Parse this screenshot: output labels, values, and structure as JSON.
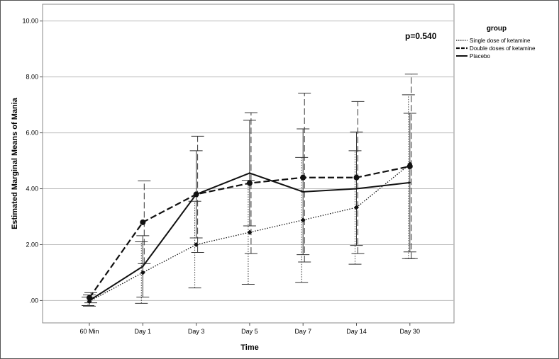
{
  "chart_data": {
    "type": "line",
    "xlabel": "Time",
    "ylabel": "Estimated Marginal Means of Mania",
    "categories": [
      "60 Min",
      "Day 1",
      "Day 3",
      "Day 5",
      "Day 7",
      "Day 14",
      "Day 30"
    ],
    "ylim": [
      -0.8,
      10.6
    ],
    "yticks": [
      0,
      2,
      4,
      6,
      8,
      10
    ],
    "ytick_labels": [
      ".00",
      "2.00",
      "4.00",
      "6.00",
      "8.00",
      "10.00"
    ],
    "grid": "horizontal",
    "annotation": "p=0.540",
    "legend": {
      "title": "group",
      "placement": "top-right"
    },
    "series": [
      {
        "name": "Single dose of ketamine",
        "style": "dotted",
        "marker": "diamond",
        "values": [
          -0.03,
          1.0,
          2.0,
          2.44,
          2.88,
          3.33,
          4.88
        ],
        "ci_low": [
          -0.18,
          -0.1,
          0.45,
          0.58,
          0.65,
          1.3,
          1.5
        ],
        "ci_high": [
          0.12,
          2.1,
          3.55,
          4.3,
          5.12,
          5.36,
          7.36
        ]
      },
      {
        "name": "Double doses of ketamine",
        "style": "dashed",
        "marker": "circle",
        "values": [
          0.1,
          2.8,
          3.8,
          4.2,
          4.4,
          4.4,
          4.8
        ],
        "ci_low": [
          -0.08,
          1.32,
          1.72,
          1.68,
          1.38,
          1.68,
          1.5
        ],
        "ci_high": [
          0.28,
          4.28,
          5.88,
          6.72,
          7.42,
          7.12,
          8.1
        ]
      },
      {
        "name": "Placebo",
        "style": "solid",
        "marker": "none",
        "values": [
          0.0,
          1.22,
          3.8,
          4.56,
          3.89,
          4.0,
          4.22
        ],
        "ci_low": [
          -0.2,
          0.12,
          2.24,
          2.67,
          1.64,
          1.97,
          1.74
        ],
        "ci_high": [
          0.2,
          2.32,
          5.36,
          6.45,
          6.14,
          6.03,
          6.7
        ]
      }
    ]
  }
}
